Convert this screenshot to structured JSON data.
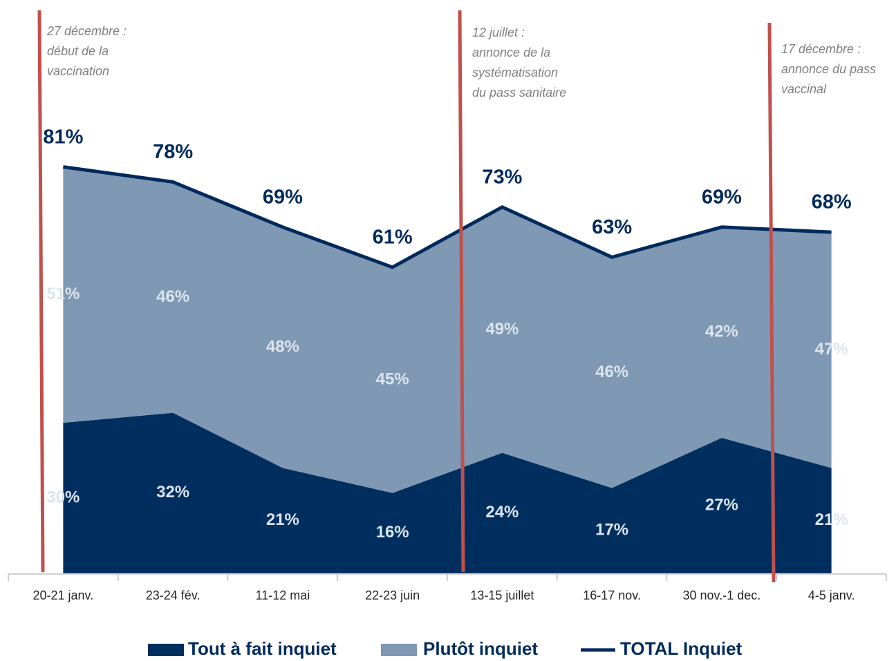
{
  "chart_data": {
    "type": "area",
    "categories": [
      "20-21 janv.",
      "23-24 fév.",
      "11-12 mai",
      "22-23 juin",
      "13-15 juillet",
      "16-17 nov.",
      "30 nov.-1 dec.",
      "4-5 janv."
    ],
    "series": [
      {
        "name": "Tout à fait inquiet",
        "type": "area",
        "color": "#002f5f",
        "label_color": "#dde4ee",
        "values": [
          30,
          32,
          21,
          16,
          24,
          17,
          27,
          21
        ],
        "value_labels": [
          "30%",
          "32%",
          "21%",
          "16%",
          "24%",
          "17%",
          "27%",
          "21%"
        ]
      },
      {
        "name": "Plutôt inquiet",
        "type": "area",
        "color": "#7f98b3",
        "label_color": "#dde4ee",
        "values": [
          51,
          46,
          48,
          45,
          49,
          46,
          42,
          47
        ],
        "value_labels": [
          "51%",
          "46%",
          "48%",
          "45%",
          "49%",
          "46%",
          "42%",
          "47%"
        ]
      },
      {
        "name": "TOTAL Inquiet",
        "type": "line",
        "color": "#002a5c",
        "label_color": "#002a5c",
        "values": [
          81,
          78,
          69,
          61,
          73,
          63,
          69,
          68
        ],
        "value_labels": [
          "81%",
          "78%",
          "69%",
          "61%",
          "73%",
          "63%",
          "69%",
          "68%"
        ]
      }
    ],
    "ylim": [
      0,
      110
    ],
    "annotations": [
      {
        "lines": [
          "27 décembre :",
          "début de la",
          "vaccination"
        ]
      },
      {
        "lines": [
          "12 juillet :",
          "annonce de la",
          "systématisation",
          "du pass sanitaire"
        ]
      },
      {
        "lines": [
          "17 décembre :",
          "annonce du pass",
          "vaccinal"
        ]
      }
    ],
    "event_color": "#c0504d"
  }
}
